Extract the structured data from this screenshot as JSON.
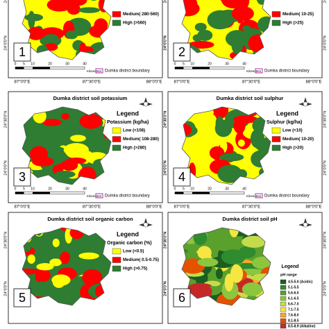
{
  "lon_labels": [
    "87°0'0\"E",
    "87°30'0\"E",
    "88°0'0\"E"
  ],
  "lat_labels": [
    "24°30'0\"N",
    "24°0'0\"N"
  ],
  "panels": [
    {
      "number": "1",
      "legend": [
        {
          "label": "Medium( 280-560)",
          "color": "#ff0000"
        },
        {
          "label": "High (>560)",
          "color": "#2e7d32"
        }
      ],
      "base_color": "#ffff00",
      "boundary_label": "Dumka district boundary",
      "scale_unit": "Kilometers",
      "scale_ticks": [
        "0",
        "5",
        "10",
        "20",
        "30",
        "40"
      ]
    },
    {
      "number": "2",
      "legend": [
        {
          "label": "Medium( 10-25)",
          "color": "#ff0000"
        },
        {
          "label": "High (>25)",
          "color": "#2e7d32"
        }
      ],
      "base_color": "#ffff00",
      "boundary_label": "Dumka district boundary",
      "scale_unit": "Kilometers",
      "scale_ticks": [
        "0",
        "5",
        "10",
        "20",
        "30",
        "40"
      ]
    },
    {
      "number": "3",
      "title": "Dumka district soil potassium",
      "legend_heading": "Legend",
      "legend_unit": "Potassium (kg/ha)",
      "legend": [
        {
          "label": "Low (<108)",
          "color": "#ffff00"
        },
        {
          "label": "Medium( 108-280)",
          "color": "#ff0000"
        },
        {
          "label": "High (>280)",
          "color": "#2e7d32"
        }
      ],
      "base_color": "#2e7d32",
      "boundary_label": "Dumka district boundary",
      "scale_unit": "Kilometers",
      "scale_ticks": [
        "0",
        "5",
        "10",
        "20",
        "30",
        "40"
      ]
    },
    {
      "number": "4",
      "title": "Dumka district soil sulphur",
      "legend_heading": "Legend",
      "legend_unit": "Sulphur (kg/ha)",
      "legend": [
        {
          "label": "Low (<10)",
          "color": "#ffff00"
        },
        {
          "label": "Medium( 10-20)",
          "color": "#ff0000"
        },
        {
          "label": "High (>20)",
          "color": "#2e7d32"
        }
      ],
      "base_color": "#ffff00",
      "boundary_label": "Dumka district boundary",
      "scale_unit": "Kilometers",
      "scale_ticks": [
        "0",
        "5",
        "10",
        "20",
        "30",
        "40"
      ]
    },
    {
      "number": "5",
      "title": "Dumka district soil organic carbon",
      "legend_heading": "Legend",
      "legend_unit": "Organic carbon (%)",
      "legend": [
        {
          "label": "Low (<0.5)",
          "color": "#ffff00"
        },
        {
          "label": "Medium( 0.5-0.75)",
          "color": "#ff0000"
        },
        {
          "label": "High (>0.75)",
          "color": "#2e7d32"
        }
      ],
      "base_color": "#2e7d32"
    },
    {
      "number": "6",
      "title": "Dumka district soil pH",
      "legend_heading": "Legend",
      "legend_unit": "pH range",
      "legend": [
        {
          "label": "4.5-5.0 (Acidic)",
          "color": "#1b5e20"
        },
        {
          "label": "5.1-5.5",
          "color": "#2e8b2e"
        },
        {
          "label": "5.6-6.0",
          "color": "#5aa02c"
        },
        {
          "label": "6.1-6.5",
          "color": "#8cc63f"
        },
        {
          "label": "6.6-7.0",
          "color": "#c5dc4a"
        },
        {
          "label": "7.1-7.5",
          "color": "#f5e642"
        },
        {
          "label": "7.6-8.0",
          "color": "#f9a825"
        },
        {
          "label": "8.1-8.5",
          "color": "#e65100"
        },
        {
          "label": "8.5-8.9 (Alkaline)",
          "color": "#c62828"
        }
      ],
      "base_color": "#5aa02c"
    }
  ]
}
